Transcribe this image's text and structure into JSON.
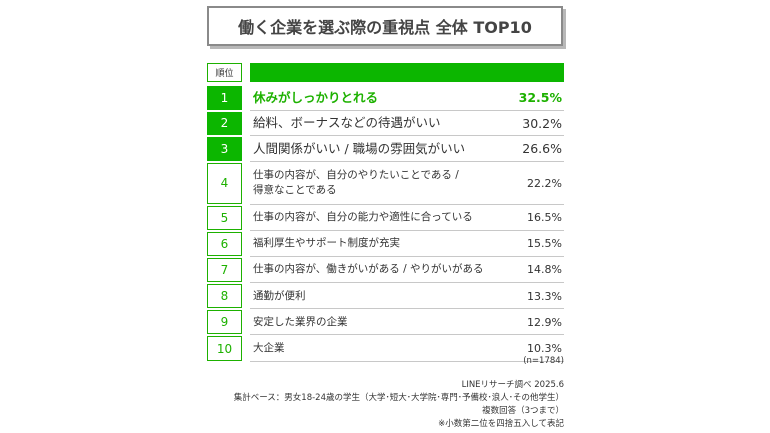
{
  "chart_data": {
    "type": "table",
    "title": "働く企業を選ぶ際の重視点 全体 TOP10",
    "rank_header": "順位",
    "rows": [
      {
        "rank": "1",
        "label": "休みがしっかりとれる",
        "value": "32.5%"
      },
      {
        "rank": "2",
        "label": "給料、ボーナスなどの待遇がいい",
        "value": "30.2%"
      },
      {
        "rank": "3",
        "label": "人間関係がいい / 職場の雰囲気がいい",
        "value": "26.6%"
      },
      {
        "rank": "4",
        "label": "仕事の内容が、自分のやりたいことである /\n得意なことである",
        "value": "22.2%"
      },
      {
        "rank": "5",
        "label": "仕事の内容が、自分の能力や適性に合っている",
        "value": "16.5%"
      },
      {
        "rank": "6",
        "label": "福利厚生やサポート制度が充実",
        "value": "15.5%"
      },
      {
        "rank": "7",
        "label": "仕事の内容が、働きがいがある / やりがいがある",
        "value": "14.8%"
      },
      {
        "rank": "8",
        "label": "通勤が便利",
        "value": "13.3%"
      },
      {
        "rank": "9",
        "label": "安定した業界の企業",
        "value": "12.9%"
      },
      {
        "rank": "10",
        "label": "大企業",
        "value": "10.3%"
      }
    ],
    "values": [
      32.5,
      30.2,
      26.6,
      22.2,
      16.5,
      15.5,
      14.8,
      13.3,
      12.9,
      10.3
    ],
    "unit": "%"
  },
  "notes": {
    "n": "(n=1784)",
    "source": "LINEリサーチ調べ 2025.6",
    "base": "集計ベース：男女18-24歳の学生（大学･短大･大学院･専門･予備校･浪人･その他学生）",
    "multi": "複数回答（3つまで）",
    "rounding": "※小数第二位を四捨五入して表記"
  },
  "colors": {
    "accent": "#0cb600",
    "accent_text": "#1db100",
    "text": "#333333",
    "divider": "#c8c8c8"
  }
}
